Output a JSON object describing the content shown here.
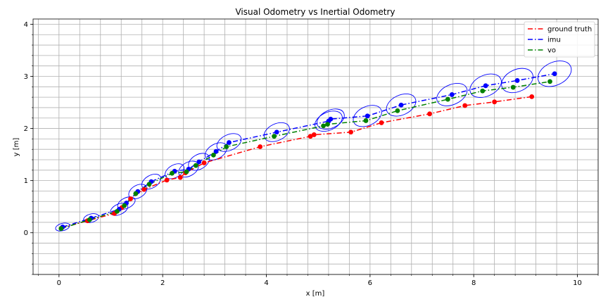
{
  "chart_data": {
    "type": "line",
    "title": "Visual Odometry vs Inertial Odometry",
    "xlabel": "x [m]",
    "ylabel": "y [m]",
    "xlim": [
      -0.5,
      10.4
    ],
    "ylim": [
      -0.8,
      4.1
    ],
    "x_ticks": [
      0,
      2,
      4,
      6,
      8,
      10
    ],
    "y_ticks": [
      0,
      1,
      2,
      3,
      4
    ],
    "grid": true,
    "legend_position": "top-right",
    "series": [
      {
        "name": "ground truth",
        "color": "#ff0000",
        "linestyle": "dashdot",
        "x": [
          0.05,
          0.55,
          1.07,
          1.21,
          1.38,
          1.64,
          2.08,
          2.34,
          2.44,
          2.8,
          3.88,
          4.85,
          4.92,
          5.63,
          6.22,
          7.15,
          7.83,
          8.4,
          9.12
        ],
        "y": [
          0.09,
          0.23,
          0.37,
          0.48,
          0.65,
          0.83,
          1.01,
          1.06,
          1.15,
          1.34,
          1.65,
          1.85,
          1.88,
          1.93,
          2.11,
          2.28,
          2.44,
          2.51,
          2.61
        ]
      },
      {
        "name": "imu",
        "color": "#0000ff",
        "linestyle": "dashdot",
        "x": [
          0.07,
          0.62,
          1.16,
          1.3,
          1.52,
          1.78,
          2.23,
          2.5,
          2.7,
          3.03,
          3.28,
          4.2,
          5.2,
          5.24,
          5.95,
          6.6,
          7.58,
          8.23,
          8.84,
          9.56
        ],
        "y": [
          0.11,
          0.28,
          0.45,
          0.57,
          0.79,
          0.98,
          1.18,
          1.22,
          1.36,
          1.56,
          1.73,
          1.93,
          2.14,
          2.18,
          2.24,
          2.45,
          2.65,
          2.82,
          2.92,
          3.05
        ],
        "uncertainty": [
          [
            0.14,
            0.07,
            -15
          ],
          [
            0.15,
            0.08,
            -15
          ],
          [
            0.18,
            0.1,
            -25
          ],
          [
            0.18,
            0.1,
            -25
          ],
          [
            0.19,
            0.12,
            -30
          ],
          [
            0.2,
            0.12,
            -30
          ],
          [
            0.2,
            0.12,
            -30
          ],
          [
            0.21,
            0.13,
            -30
          ],
          [
            0.22,
            0.14,
            -30
          ],
          [
            0.23,
            0.14,
            -30
          ],
          [
            0.25,
            0.15,
            -25
          ],
          [
            0.26,
            0.16,
            -25
          ],
          [
            0.28,
            0.17,
            -25
          ],
          [
            0.28,
            0.17,
            -25
          ],
          [
            0.29,
            0.18,
            -25
          ],
          [
            0.3,
            0.19,
            -25
          ],
          [
            0.31,
            0.19,
            -25
          ],
          [
            0.32,
            0.2,
            -25
          ],
          [
            0.32,
            0.21,
            -25
          ],
          [
            0.34,
            0.22,
            -25
          ]
        ]
      },
      {
        "name": "vo",
        "color": "#008000",
        "linestyle": "dashdot",
        "x": [
          0.04,
          0.59,
          1.12,
          1.26,
          1.48,
          1.74,
          2.18,
          2.46,
          2.64,
          2.98,
          3.23,
          4.15,
          5.1,
          5.18,
          5.92,
          6.53,
          7.5,
          8.17,
          8.76,
          9.47
        ],
        "y": [
          0.08,
          0.25,
          0.41,
          0.52,
          0.75,
          0.93,
          1.14,
          1.17,
          1.29,
          1.49,
          1.65,
          1.85,
          2.05,
          2.08,
          2.15,
          2.34,
          2.56,
          2.72,
          2.79,
          2.9
        ]
      }
    ]
  }
}
